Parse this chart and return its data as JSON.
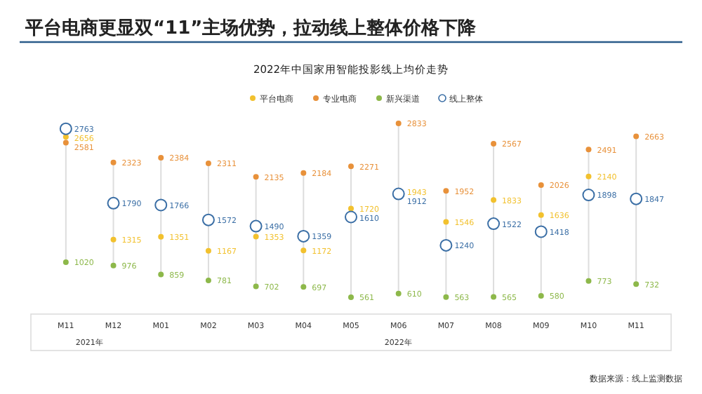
{
  "chart_data": {
    "type": "other",
    "title": "平台电商更显双“11”主场优势，拉动线上整体价格下降",
    "subtitle": "2022年中国家用智能投影线上均价走势",
    "categories": [
      "M11",
      "M12",
      "M01",
      "M02",
      "M03",
      "M04",
      "M05",
      "M06",
      "M07",
      "M08",
      "M09",
      "M10",
      "M11"
    ],
    "series": [
      {
        "name": "平台电商",
        "color": "#f2c12e",
        "values": [
          2656,
          1315,
          1351,
          1167,
          1353,
          1172,
          1720,
          1943,
          1546,
          1833,
          1636,
          2140,
          null
        ]
      },
      {
        "name": "专业电商",
        "color": "#e8913a",
        "values": [
          2581,
          2323,
          2384,
          2311,
          2135,
          2184,
          2271,
          2833,
          1952,
          2567,
          2026,
          2491,
          2663
        ]
      },
      {
        "name": "新兴渠道",
        "color": "#8db84a",
        "values": [
          1020,
          976,
          859,
          781,
          702,
          697,
          561,
          610,
          563,
          565,
          580,
          773,
          732
        ]
      },
      {
        "name": "线上整体",
        "color": "#3a6ea5",
        "marker": "hollow",
        "values": [
          2763,
          1790,
          1766,
          1572,
          1490,
          1359,
          1610,
          1912,
          1240,
          1522,
          1418,
          1898,
          1847
        ]
      }
    ],
    "data_labels": true,
    "legend": "top",
    "annotations": [
      {
        "text": "2021年",
        "x": "M11"
      },
      {
        "text": "2022年",
        "x": "M06"
      },
      "数据来源：线上监测数据"
    ]
  }
}
